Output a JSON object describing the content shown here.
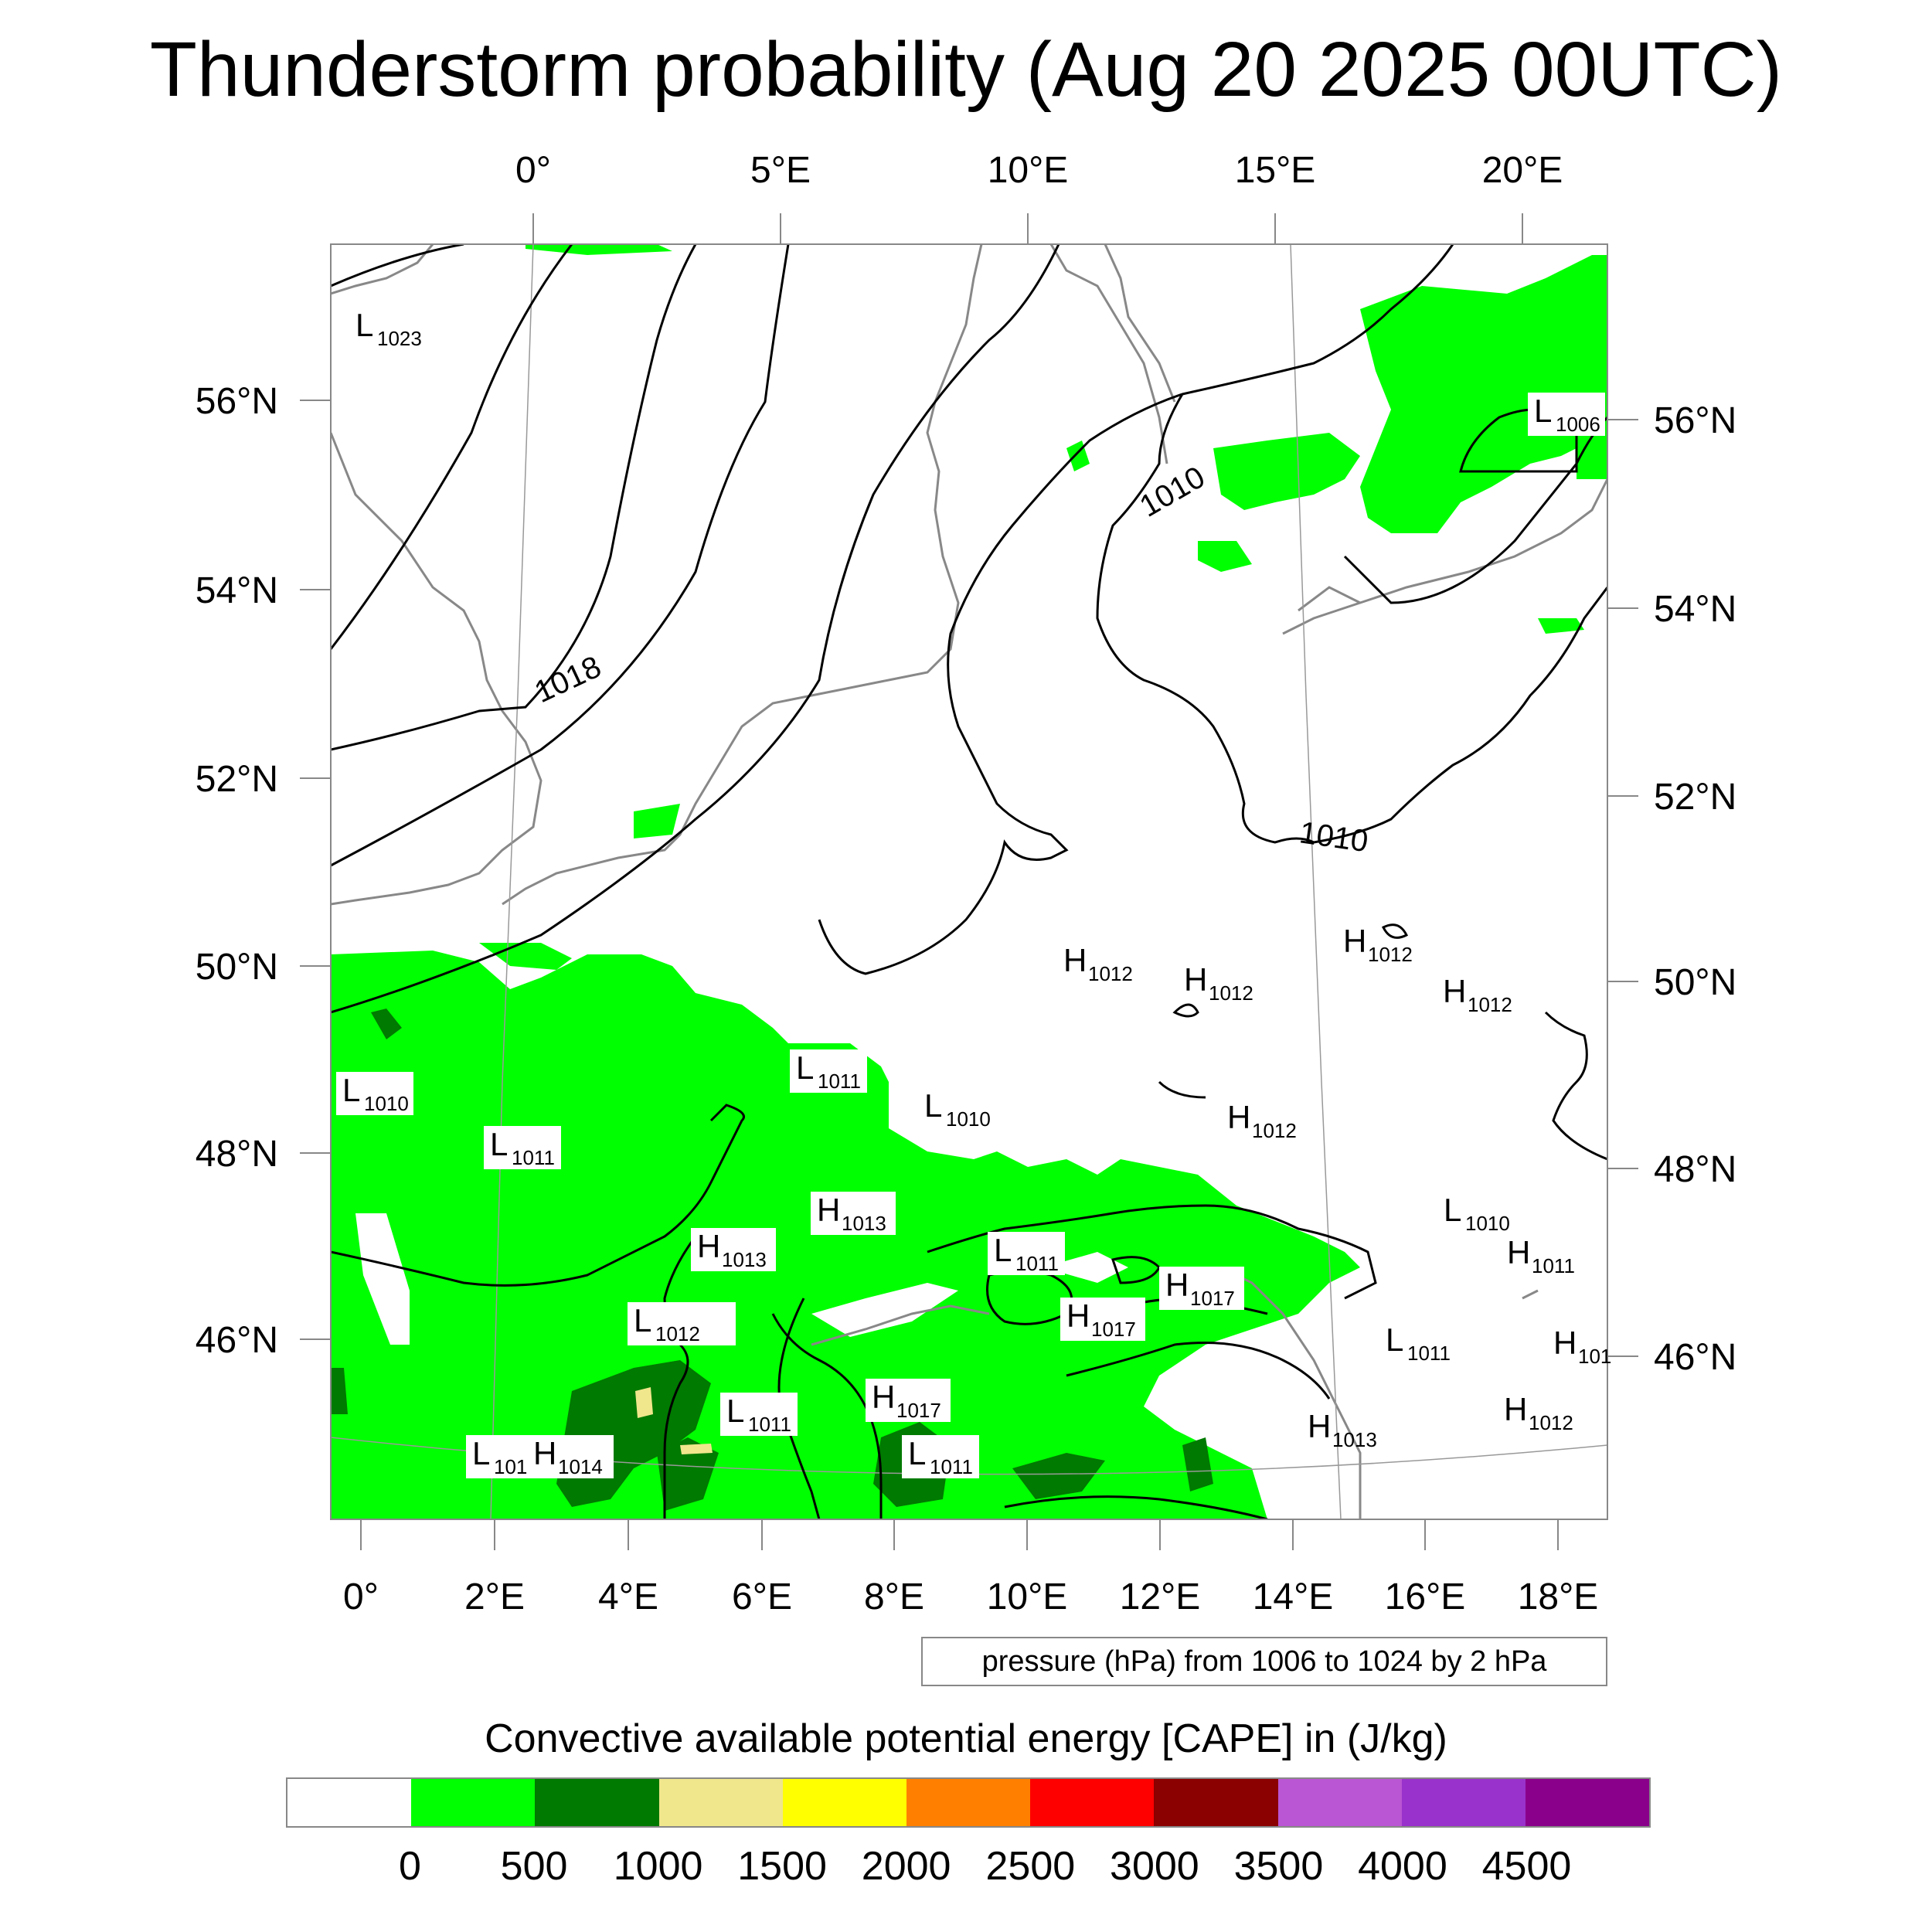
{
  "title": "Thunderstorm probability (Aug 20 2025 00UTC)",
  "top_lon_labels": [
    "0°",
    "5°E",
    "10°E",
    "15°E",
    "20°E"
  ],
  "bottom_lon_labels": [
    "0°",
    "2°E",
    "4°E",
    "6°E",
    "8°E",
    "10°E",
    "12°E",
    "14°E",
    "16°E",
    "18°E"
  ],
  "left_lat_labels": [
    "56°N",
    "54°N",
    "52°N",
    "50°N",
    "48°N",
    "46°N"
  ],
  "right_lat_labels": [
    "56°N",
    "54°N",
    "52°N",
    "50°N",
    "48°N",
    "46°N"
  ],
  "isobar_labels": [
    "1018",
    "1010",
    "1010"
  ],
  "pressure_centers": [
    {
      "letter": "L",
      "value": "1023"
    },
    {
      "letter": "L",
      "value": "1006"
    },
    {
      "letter": "H",
      "value": "1012"
    },
    {
      "letter": "H",
      "value": "1012"
    },
    {
      "letter": "H",
      "value": "1012"
    },
    {
      "letter": "H",
      "value": "1012"
    },
    {
      "letter": "L",
      "value": "1010"
    },
    {
      "letter": "L",
      "value": "1011"
    },
    {
      "letter": "L",
      "value": "1010"
    },
    {
      "letter": "L",
      "value": "1011"
    },
    {
      "letter": "H",
      "value": "1012"
    },
    {
      "letter": "H",
      "value": "1013"
    },
    {
      "letter": "H",
      "value": "1013"
    },
    {
      "letter": "L",
      "value": "1010"
    },
    {
      "letter": "H",
      "value": "1011"
    },
    {
      "letter": "L",
      "value": "1011"
    },
    {
      "letter": "H",
      "value": "1017"
    },
    {
      "letter": "L",
      "value": "1012"
    },
    {
      "letter": "H",
      "value": "1017"
    },
    {
      "letter": "L",
      "value": "1011"
    },
    {
      "letter": "H",
      "value": "1017"
    },
    {
      "letter": "H",
      "value": "101"
    },
    {
      "letter": "L",
      "value": "1011"
    },
    {
      "letter": "L",
      "value": "1011"
    },
    {
      "letter": "H",
      "value": "1012"
    },
    {
      "letter": "H",
      "value": "1013"
    },
    {
      "letter": "L",
      "value": "101"
    },
    {
      "letter": "H",
      "value": "1014"
    }
  ],
  "pressure_note": "pressure (hPa) from 1006 to 1024 by 2 hPa",
  "colorbar": {
    "title": "Convective available potential energy [CAPE] in (J/kg)",
    "colors": [
      "#ffffff",
      "#00ff00",
      "#007a00",
      "#f0e68c",
      "#ffff00",
      "#ff8000",
      "#ff0000",
      "#8b0000",
      "#ba55d3",
      "#9932cc",
      "#8b008b"
    ],
    "ticks": [
      "0",
      "500",
      "1000",
      "1500",
      "2000",
      "2500",
      "3000",
      "3500",
      "4000",
      "4500"
    ]
  },
  "colors": {
    "cape_low": "#00ff00",
    "cape_mid": "#007a00",
    "cape_high": "#f0e68c",
    "coastline": "#888888",
    "isobar": "#000000"
  }
}
